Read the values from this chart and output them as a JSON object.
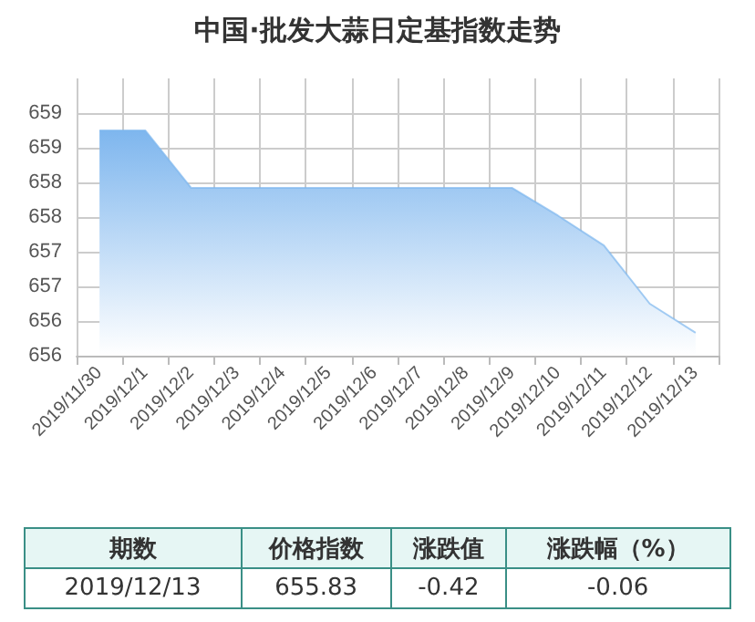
{
  "chart_data": {
    "type": "area",
    "title": "中国·批发大蒜日定基指数走势",
    "categories": [
      "2019/11/30",
      "2019/12/1",
      "2019/12/2",
      "2019/12/3",
      "2019/12/4",
      "2019/12/5",
      "2019/12/6",
      "2019/12/7",
      "2019/12/8",
      "2019/12/9",
      "2019/12/10",
      "2019/12/11",
      "2019/12/12",
      "2019/12/13"
    ],
    "series": [
      {
        "color": "#7eb6ee",
        "values": [
          658.75,
          658.75,
          657.92,
          657.92,
          657.92,
          657.92,
          657.92,
          657.92,
          657.92,
          657.92,
          657.52,
          657.09,
          656.25,
          655.83
        ]
      }
    ],
    "ylim": [
      655.5,
      659.5
    ],
    "yticks": [
      {
        "value": 655.5,
        "label": "656"
      },
      {
        "value": 656,
        "label": "656"
      },
      {
        "value": 656.5,
        "label": "657"
      },
      {
        "value": 657,
        "label": "657"
      },
      {
        "value": 657.5,
        "label": "658"
      },
      {
        "value": 658,
        "label": "658"
      },
      {
        "value": 658.5,
        "label": "659"
      },
      {
        "value": 659,
        "label": "659"
      }
    ],
    "grid": true,
    "marker": "none",
    "annotations": [
      "期数",
      "价格指数",
      "涨跌值",
      "涨跌幅（%）",
      "2019/12/13",
      "655.83",
      "-0.42",
      "-0.06"
    ]
  }
}
